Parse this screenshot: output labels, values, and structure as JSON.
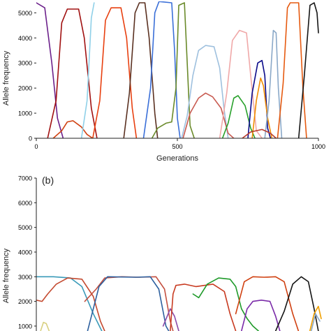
{
  "chart_data": [
    {
      "type": "line",
      "panel_label": "",
      "xlabel": "Generations",
      "ylabel": "Allele frequency",
      "xlim": [
        0,
        1000
      ],
      "ylim": [
        0,
        5400
      ],
      "xticks": [
        0,
        500,
        1000
      ],
      "yticks": [
        0,
        1000,
        2000,
        3000,
        4000,
        5000
      ],
      "grid": false,
      "series": [
        {
          "color": "#6b1f8a",
          "points": [
            [
              0,
              5400
            ],
            [
              30,
              5200
            ],
            [
              55,
              3000
            ],
            [
              75,
              800
            ],
            [
              95,
              0
            ]
          ]
        },
        {
          "color": "#a01010",
          "points": [
            [
              40,
              0
            ],
            [
              70,
              1500
            ],
            [
              90,
              4600
            ],
            [
              110,
              5150
            ],
            [
              150,
              5150
            ],
            [
              170,
              4000
            ],
            [
              195,
              1200
            ],
            [
              215,
              0
            ]
          ]
        },
        {
          "color": "#d04010",
          "points": [
            [
              60,
              0
            ],
            [
              90,
              300
            ],
            [
              110,
              650
            ],
            [
              130,
              700
            ],
            [
              160,
              450
            ],
            [
              180,
              150
            ],
            [
              200,
              0
            ]
          ]
        },
        {
          "color": "#8fd0e8",
          "points": [
            [
              160,
              0
            ],
            [
              180,
              1500
            ],
            [
              195,
              4800
            ],
            [
              205,
              5400
            ]
          ]
        },
        {
          "color": "#e84010",
          "points": [
            [
              200,
              0
            ],
            [
              225,
              1500
            ],
            [
              245,
              4700
            ],
            [
              265,
              5200
            ],
            [
              300,
              5200
            ],
            [
              320,
              4000
            ],
            [
              340,
              1200
            ],
            [
              355,
              0
            ]
          ]
        },
        {
          "color": "#5a3020",
          "points": [
            [
              310,
              0
            ],
            [
              330,
              1800
            ],
            [
              350,
              5000
            ],
            [
              365,
              5400
            ],
            [
              385,
              5400
            ],
            [
              400,
              4000
            ],
            [
              420,
              1000
            ],
            [
              430,
              0
            ]
          ]
        },
        {
          "color": "#3a6fd8",
          "points": [
            [
              380,
              0
            ],
            [
              405,
              2000
            ],
            [
              420,
              5000
            ],
            [
              435,
              5450
            ],
            [
              480,
              5400
            ],
            [
              490,
              3500
            ],
            [
              500,
              800
            ],
            [
              510,
              0
            ]
          ]
        },
        {
          "color": "#6a8a2a",
          "points": [
            [
              410,
              0
            ],
            [
              430,
              400
            ],
            [
              460,
              600
            ],
            [
              480,
              650
            ],
            [
              495,
              2000
            ],
            [
              505,
              5300
            ],
            [
              525,
              5400
            ],
            [
              535,
              3000
            ],
            [
              545,
              500
            ],
            [
              560,
              0
            ]
          ]
        },
        {
          "color": "#9ec0de",
          "points": [
            [
              515,
              0
            ],
            [
              535,
              900
            ],
            [
              555,
              2500
            ],
            [
              575,
              3500
            ],
            [
              600,
              3700
            ],
            [
              630,
              3650
            ],
            [
              650,
              2800
            ],
            [
              665,
              1200
            ],
            [
              680,
              0
            ]
          ]
        },
        {
          "color": "#c85a50",
          "points": [
            [
              520,
              0
            ],
            [
              545,
              1000
            ],
            [
              575,
              1600
            ],
            [
              600,
              1800
            ],
            [
              625,
              1650
            ],
            [
              655,
              1200
            ],
            [
              680,
              200
            ],
            [
              700,
              0
            ]
          ]
        },
        {
          "color": "#f0a8a8",
          "points": [
            [
              650,
              0
            ],
            [
              675,
              1800
            ],
            [
              695,
              3900
            ],
            [
              720,
              4300
            ],
            [
              745,
              4200
            ],
            [
              760,
              2500
            ],
            [
              780,
              300
            ],
            [
              800,
              0
            ]
          ]
        },
        {
          "color": "#27a02a",
          "points": [
            [
              660,
              0
            ],
            [
              680,
              600
            ],
            [
              700,
              1600
            ],
            [
              715,
              1700
            ],
            [
              740,
              1300
            ],
            [
              760,
              400
            ],
            [
              775,
              0
            ]
          ]
        },
        {
          "color": "#0a0a8a",
          "points": [
            [
              750,
              0
            ],
            [
              765,
              1800
            ],
            [
              785,
              3000
            ],
            [
              800,
              3100
            ],
            [
              810,
              2500
            ],
            [
              820,
              400
            ],
            [
              830,
              0
            ]
          ]
        },
        {
          "color": "#f08c00",
          "points": [
            [
              765,
              0
            ],
            [
              780,
              1500
            ],
            [
              795,
              2400
            ],
            [
              805,
              2100
            ],
            [
              820,
              800
            ],
            [
              835,
              0
            ]
          ]
        },
        {
          "color": "#8aa8c8",
          "points": [
            [
              810,
              0
            ],
            [
              825,
              1500
            ],
            [
              840,
              4300
            ],
            [
              850,
              4200
            ],
            [
              858,
              2000
            ],
            [
              870,
              0
            ]
          ]
        },
        {
          "color": "#e65a10",
          "points": [
            [
              855,
              0
            ],
            [
              875,
              2200
            ],
            [
              890,
              5200
            ],
            [
              900,
              5400
            ],
            [
              930,
              5400
            ],
            [
              945,
              2000
            ],
            [
              958,
              0
            ]
          ]
        },
        {
          "color": "#151515",
          "points": [
            [
              930,
              0
            ],
            [
              950,
              2500
            ],
            [
              970,
              5300
            ],
            [
              985,
              5400
            ],
            [
              995,
              5000
            ],
            [
              1000,
              4200
            ]
          ]
        },
        {
          "color": "#b83a2a",
          "points": [
            [
              730,
              0
            ],
            [
              760,
              250
            ],
            [
              800,
              350
            ],
            [
              830,
              200
            ],
            [
              850,
              0
            ]
          ]
        }
      ]
    },
    {
      "type": "line",
      "panel_label": "(b)",
      "xlabel": "",
      "ylabel": "Allele frequency",
      "xlim": [
        0,
        1000
      ],
      "ylim": [
        800,
        7000
      ],
      "xticks": [],
      "yticks": [
        1000,
        2000,
        3000,
        4000,
        5000,
        6000,
        7000
      ],
      "grid": false,
      "series": [
        {
          "color": "#3a9ab8",
          "points": [
            [
              0,
              3000
            ],
            [
              60,
              3000
            ],
            [
              120,
              2950
            ],
            [
              160,
              2600
            ],
            [
              200,
              1500
            ],
            [
              230,
              800
            ]
          ]
        },
        {
          "color": "#c44a30",
          "points": [
            [
              0,
              2050
            ],
            [
              20,
              2000
            ],
            [
              40,
              2300
            ],
            [
              70,
              2700
            ],
            [
              110,
              2950
            ],
            [
              160,
              2900
            ],
            [
              200,
              2200
            ],
            [
              225,
              1200
            ],
            [
              240,
              800
            ]
          ]
        },
        {
          "color": "#d8d080",
          "points": [
            [
              15,
              800
            ],
            [
              25,
              1150
            ],
            [
              35,
              1100
            ],
            [
              45,
              800
            ]
          ]
        },
        {
          "color": "#c45040",
          "points": [
            [
              170,
              2000
            ],
            [
              210,
              2500
            ],
            [
              240,
              2950
            ],
            [
              300,
              3000
            ],
            [
              360,
              2980
            ],
            [
              420,
              3000
            ],
            [
              450,
              2500
            ],
            [
              470,
              1200
            ],
            [
              480,
              800
            ]
          ]
        },
        {
          "color": "#2c5f9e",
          "points": [
            [
              180,
              800
            ],
            [
              220,
              2600
            ],
            [
              250,
              3000
            ],
            [
              350,
              2980
            ],
            [
              400,
              3000
            ],
            [
              430,
              2500
            ],
            [
              455,
              1000
            ],
            [
              465,
              800
            ]
          ]
        },
        {
          "color": "#8a4aa8",
          "points": [
            [
              445,
              1000
            ],
            [
              470,
              1700
            ],
            [
              485,
              1400
            ],
            [
              500,
              800
            ]
          ]
        },
        {
          "color": "#c83a20",
          "points": [
            [
              470,
              800
            ],
            [
              480,
              2300
            ],
            [
              490,
              2650
            ],
            [
              520,
              2700
            ],
            [
              560,
              2600
            ],
            [
              620,
              2700
            ],
            [
              660,
              2400
            ],
            [
              680,
              1500
            ],
            [
              700,
              800
            ]
          ]
        },
        {
          "color": "#1f9a2a",
          "points": [
            [
              550,
              2300
            ],
            [
              570,
              2150
            ],
            [
              600,
              2700
            ],
            [
              640,
              2950
            ],
            [
              680,
              2900
            ],
            [
              700,
              2600
            ],
            [
              720,
              1700
            ],
            [
              740,
              1300
            ],
            [
              760,
              1000
            ],
            [
              780,
              800
            ]
          ]
        },
        {
          "color": "#d04010",
          "points": [
            [
              700,
              1500
            ],
            [
              730,
              2800
            ],
            [
              760,
              3000
            ],
            [
              800,
              2980
            ],
            [
              840,
              3000
            ],
            [
              870,
              2800
            ],
            [
              900,
              1500
            ],
            [
              920,
              800
            ]
          ]
        },
        {
          "color": "#7a2aa8",
          "points": [
            [
              720,
              800
            ],
            [
              740,
              1700
            ],
            [
              760,
              2000
            ],
            [
              790,
              2050
            ],
            [
              820,
              2000
            ],
            [
              840,
              1400
            ],
            [
              855,
              800
            ]
          ]
        },
        {
          "color": "#151515",
          "points": [
            [
              840,
              800
            ],
            [
              870,
              1600
            ],
            [
              900,
              2700
            ],
            [
              930,
              3000
            ],
            [
              955,
              2800
            ],
            [
              975,
              1700
            ],
            [
              990,
              800
            ]
          ]
        },
        {
          "color": "#f0a000",
          "points": [
            [
              960,
              800
            ],
            [
              975,
              1500
            ],
            [
              990,
              1800
            ],
            [
              1000,
              1300
            ]
          ]
        },
        {
          "color": "#8aa8c8",
          "points": [
            [
              965,
              800
            ],
            [
              980,
              1500
            ],
            [
              995,
              1200
            ]
          ]
        }
      ]
    }
  ]
}
